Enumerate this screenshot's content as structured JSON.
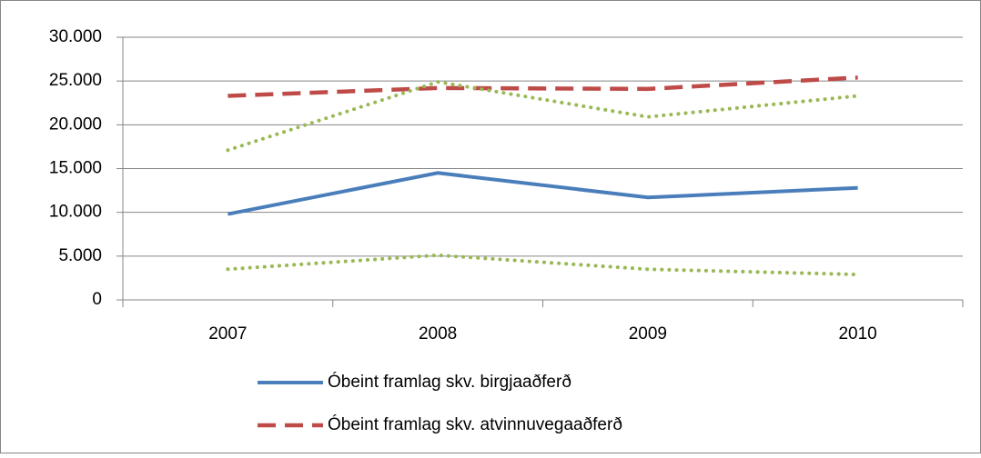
{
  "chart_data": {
    "type": "line",
    "categories": [
      "2007",
      "2008",
      "2009",
      "2010"
    ],
    "series": [
      {
        "name": "Óbeint framlag skv. birgjaaðferð",
        "color": "#4a7ebb",
        "style": "solid",
        "values": [
          9800,
          14500,
          11700,
          12800
        ]
      },
      {
        "name": "Óbeint framlag skv. atvinnuvegaaðferð",
        "color": "#be4b48",
        "style": "dashed",
        "values": [
          23300,
          24200,
          24100,
          25400
        ]
      },
      {
        "color": "#98b954",
        "style": "dotted",
        "values": [
          17100,
          24900,
          20900,
          23300
        ]
      },
      {
        "color": "#98b954",
        "style": "dotted",
        "values": [
          3500,
          5100,
          3500,
          2900
        ]
      }
    ],
    "ylim": [
      0,
      30000
    ],
    "yticks": [
      0,
      {
        "value": 5000,
        "label": "5.000"
      },
      {
        "value": 10000,
        "label": "10.000"
      },
      {
        "value": 15000,
        "label": "15.000"
      },
      {
        "value": 20000,
        "label": "20.000"
      },
      {
        "value": 25000,
        "label": "25.000"
      },
      {
        "value": 30000,
        "label": "30.000"
      }
    ],
    "grid": true,
    "legend": "bottom"
  }
}
